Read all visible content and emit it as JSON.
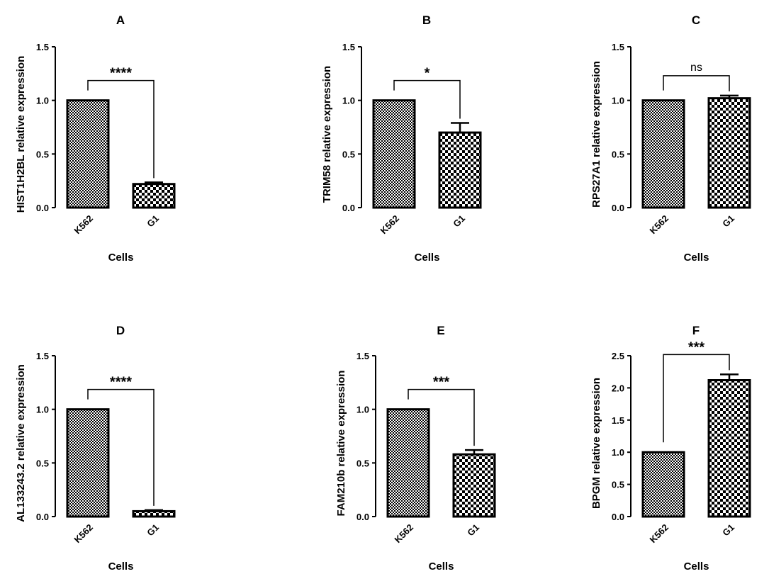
{
  "chart_data": [
    {
      "type": "bar",
      "title": "A",
      "ylabel": "HIST1H2BL relative expression",
      "xlabel": "Cells",
      "categories": [
        "K562",
        "G1"
      ],
      "values": [
        1.0,
        0.22
      ],
      "errors": [
        0,
        0.015
      ],
      "ylim": [
        0,
        1.5
      ],
      "yticks": [
        "0.0",
        "0.5",
        "1.0",
        "1.5"
      ],
      "significance": "****"
    },
    {
      "type": "bar",
      "title": "B",
      "ylabel": "TRIM58 relative expression",
      "xlabel": "Cells",
      "categories": [
        "K562",
        "G1"
      ],
      "values": [
        1.0,
        0.7
      ],
      "errors": [
        0,
        0.09
      ],
      "ylim": [
        0,
        1.5
      ],
      "yticks": [
        "0.0",
        "0.5",
        "1.0",
        "1.5"
      ],
      "significance": "*"
    },
    {
      "type": "bar",
      "title": "C",
      "ylabel": "RPS27A1 relative expression",
      "xlabel": "Cells",
      "categories": [
        "K562",
        "G1"
      ],
      "values": [
        1.0,
        1.02
      ],
      "errors": [
        0,
        0.025
      ],
      "ylim": [
        0,
        1.5
      ],
      "yticks": [
        "0.0",
        "0.5",
        "1.0",
        "1.5"
      ],
      "significance": "ns"
    },
    {
      "type": "bar",
      "title": "D",
      "ylabel": "AL133243.2 relative expression",
      "xlabel": "Cells",
      "categories": [
        "K562",
        "G1"
      ],
      "values": [
        1.0,
        0.05
      ],
      "errors": [
        0,
        0.01
      ],
      "ylim": [
        0,
        1.5
      ],
      "yticks": [
        "0.0",
        "0.5",
        "1.0",
        "1.5"
      ],
      "significance": "****"
    },
    {
      "type": "bar",
      "title": "E",
      "ylabel": "FAM210b relative expression",
      "xlabel": "Cells",
      "categories": [
        "K562",
        "G1"
      ],
      "values": [
        1.0,
        0.58
      ],
      "errors": [
        0,
        0.04
      ],
      "ylim": [
        0,
        1.5
      ],
      "yticks": [
        "0.0",
        "0.5",
        "1.0",
        "1.5"
      ],
      "significance": "***"
    },
    {
      "type": "bar",
      "title": "F",
      "ylabel": "BPGM relative expression",
      "xlabel": "Cells",
      "categories": [
        "K562",
        "G1"
      ],
      "values": [
        1.0,
        2.12
      ],
      "errors": [
        0,
        0.09
      ],
      "ylim": [
        0,
        2.5
      ],
      "yticks": [
        "0.0",
        "0.5",
        "1.0",
        "1.5",
        "2.0",
        "2.5"
      ],
      "significance": "***"
    }
  ],
  "colors": {
    "ink": "#000000",
    "background": "#ffffff"
  }
}
